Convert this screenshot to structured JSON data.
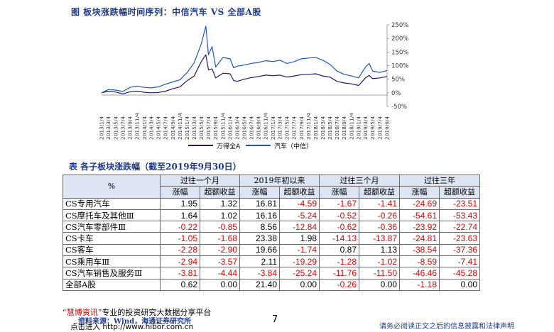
{
  "figure": {
    "title": "图 板块涨跌幅时间序列：中信汽车 VS 全部A股"
  },
  "chart_data": {
    "type": "line",
    "title": "",
    "yticks": [
      "250%",
      "200%",
      "150%",
      "100%",
      "50%",
      "0%",
      "-50%"
    ],
    "ytick_values": [
      250,
      200,
      150,
      100,
      50,
      0,
      -50
    ],
    "ylim": [
      -50,
      250
    ],
    "xlim": [
      "2013/1/4",
      "2019/9/4"
    ],
    "xticks": [
      "2013/1/4",
      "2013/3/4",
      "2013/5/4",
      "2013/7/4",
      "2013/9/4",
      "2013/11/4",
      "2014/1/4",
      "2014/3/4",
      "2014/5/4",
      "2014/7/4",
      "2014/9/4",
      "2014/11/4",
      "2015/1/4",
      "2015/3/4",
      "2015/5/4",
      "2015/7/4",
      "2015/9/4",
      "2015/11/4",
      "2016/1/4",
      "2016/3/4",
      "2016/5/4",
      "2016/7/4",
      "2016/9/4",
      "2016/11/4",
      "2017/1/4",
      "2017/3/4",
      "2017/5/4",
      "2017/7/4",
      "2017/9/4",
      "2017/11/4",
      "2018/1/4",
      "2018/3/4",
      "2018/5/4",
      "2018/7/4",
      "2018/9/4",
      "2018/11/4",
      "2019/1/4",
      "2019/3/4",
      "2019/5/4",
      "2019/7/4",
      "2019/9/4"
    ],
    "legend_position": "bottom",
    "series": [
      {
        "name": "万得全A",
        "color": "#1c1c6b",
        "points": [
          [
            "2013/1/4",
            0
          ],
          [
            "2013/3/4",
            6
          ],
          [
            "2013/5/4",
            3
          ],
          [
            "2013/7/4",
            -4
          ],
          [
            "2013/9/4",
            4
          ],
          [
            "2013/11/4",
            6
          ],
          [
            "2014/1/4",
            2
          ],
          [
            "2014/3/4",
            0
          ],
          [
            "2014/5/4",
            1
          ],
          [
            "2014/7/4",
            6
          ],
          [
            "2014/9/4",
            15
          ],
          [
            "2014/11/4",
            22
          ],
          [
            "2015/1/4",
            45
          ],
          [
            "2015/3/4",
            62
          ],
          [
            "2015/5/4",
            115
          ],
          [
            "2015/6/12",
            140
          ],
          [
            "2015/7/4",
            85
          ],
          [
            "2015/8/4",
            88
          ],
          [
            "2015/9/4",
            55
          ],
          [
            "2015/11/4",
            72
          ],
          [
            "2016/1/4",
            70
          ],
          [
            "2016/2/4",
            45
          ],
          [
            "2016/3/4",
            42
          ],
          [
            "2016/5/4",
            50
          ],
          [
            "2016/7/4",
            56
          ],
          [
            "2016/9/4",
            60
          ],
          [
            "2016/11/4",
            65
          ],
          [
            "2017/1/4",
            63
          ],
          [
            "2017/3/4",
            65
          ],
          [
            "2017/5/4",
            58
          ],
          [
            "2017/7/4",
            62
          ],
          [
            "2017/9/4",
            67
          ],
          [
            "2017/11/4",
            68
          ],
          [
            "2018/1/4",
            70
          ],
          [
            "2018/3/4",
            62
          ],
          [
            "2018/5/4",
            58
          ],
          [
            "2018/7/4",
            42
          ],
          [
            "2018/9/4",
            36
          ],
          [
            "2018/11/4",
            33
          ],
          [
            "2019/1/4",
            27
          ],
          [
            "2019/3/4",
            55
          ],
          [
            "2019/4/4",
            64
          ],
          [
            "2019/5/4",
            52
          ],
          [
            "2019/7/4",
            55
          ],
          [
            "2019/9/4",
            60
          ]
        ]
      },
      {
        "name": "汽车（中信）",
        "color": "#1f57b5",
        "points": [
          [
            "2013/1/4",
            0
          ],
          [
            "2013/3/4",
            12
          ],
          [
            "2013/5/4",
            10
          ],
          [
            "2013/7/4",
            5
          ],
          [
            "2013/9/4",
            20
          ],
          [
            "2013/11/4",
            25
          ],
          [
            "2014/1/4",
            20
          ],
          [
            "2014/3/4",
            18
          ],
          [
            "2014/5/4",
            22
          ],
          [
            "2014/7/4",
            32
          ],
          [
            "2014/9/4",
            40
          ],
          [
            "2014/11/4",
            48
          ],
          [
            "2015/1/4",
            75
          ],
          [
            "2015/3/4",
            110
          ],
          [
            "2015/5/4",
            180
          ],
          [
            "2015/6/12",
            245
          ],
          [
            "2015/7/4",
            140
          ],
          [
            "2015/8/4",
            170
          ],
          [
            "2015/9/4",
            95
          ],
          [
            "2015/11/4",
            130
          ],
          [
            "2016/1/4",
            125
          ],
          [
            "2016/2/4",
            92
          ],
          [
            "2016/3/4",
            98
          ],
          [
            "2016/5/4",
            102
          ],
          [
            "2016/7/4",
            108
          ],
          [
            "2016/9/4",
            112
          ],
          [
            "2016/11/4",
            118
          ],
          [
            "2017/1/4",
            115
          ],
          [
            "2017/3/4",
            120
          ],
          [
            "2017/5/4",
            108
          ],
          [
            "2017/7/4",
            115
          ],
          [
            "2017/9/4",
            125
          ],
          [
            "2017/11/4",
            128
          ],
          [
            "2018/1/4",
            130
          ],
          [
            "2018/3/4",
            120
          ],
          [
            "2018/5/4",
            105
          ],
          [
            "2018/7/4",
            80
          ],
          [
            "2018/9/4",
            68
          ],
          [
            "2018/11/4",
            62
          ],
          [
            "2019/1/4",
            55
          ],
          [
            "2019/3/4",
            95
          ],
          [
            "2019/4/4",
            108
          ],
          [
            "2019/5/4",
            80
          ],
          [
            "2019/7/4",
            75
          ],
          [
            "2019/9/4",
            82
          ]
        ]
      }
    ]
  },
  "table": {
    "title": "表 各子板块涨跌幅（截至2019年9月30日）",
    "corner_label": "%",
    "periods": [
      "过往一个月",
      "2019年初以来",
      "过往三个月",
      "过往三年"
    ],
    "subheaders": [
      "涨幅",
      "超额收益",
      "涨幅",
      "超额收益",
      "涨幅",
      "超额收益",
      "涨幅",
      "超额收益"
    ],
    "rows": [
      {
        "name": "CS专用汽车",
        "values": [
          "1.95",
          "1.32",
          "16.81",
          "-4.59",
          "-1.67",
          "-1.41",
          "-24.69",
          "-23.51"
        ]
      },
      {
        "name": "CS摩托车及其他Ⅲ",
        "values": [
          "1.64",
          "1.02",
          "16.16",
          "-5.24",
          "-0.52",
          "-0.26",
          "-54.61",
          "-53.43"
        ]
      },
      {
        "name": "CS汽车零部件Ⅲ",
        "values": [
          "-0.22",
          "-0.85",
          "8.56",
          "-12.84",
          "-0.62",
          "-0.36",
          "-23.92",
          "-22.74"
        ]
      },
      {
        "name": "CS卡车",
        "values": [
          "-1.05",
          "-1.68",
          "23.38",
          "1.98",
          "-14.13",
          "-13.87",
          "-24.81",
          "-23.63"
        ]
      },
      {
        "name": "CS客车",
        "values": [
          "-2.28",
          "-2.90",
          "19.66",
          "-1.74",
          "0.87",
          "1.13",
          "-38.54",
          "-37.36"
        ]
      },
      {
        "name": "CS乘用车Ⅲ",
        "values": [
          "-2.94",
          "-3.57",
          "2.11",
          "-19.29",
          "-1.28",
          "-1.02",
          "-8.59",
          "-7.41"
        ]
      },
      {
        "name": "CS汽车销售及服务Ⅲ",
        "values": [
          "-3.81",
          "-4.44",
          "-3.84",
          "-25.24",
          "-11.76",
          "-11.50",
          "-46.46",
          "-45.28"
        ]
      },
      {
        "name": "全部A股",
        "values": [
          "0.62",
          "0.00",
          "21.40",
          "0.00",
          "-0.26",
          "0.00",
          "-1.18",
          "0.00"
        ]
      }
    ]
  },
  "footer": {
    "brand_line_brand": "“慧博资讯”",
    "brand_line_rest": "专业的投资研究大数据分享平台",
    "source": "资料来源：Wind，海通证券研究所",
    "link": "点击进入 http://www.hibor.com.cn",
    "page_number": "7",
    "disclaimer": "请务必阅读正文之后的信息披露和法律声明"
  }
}
